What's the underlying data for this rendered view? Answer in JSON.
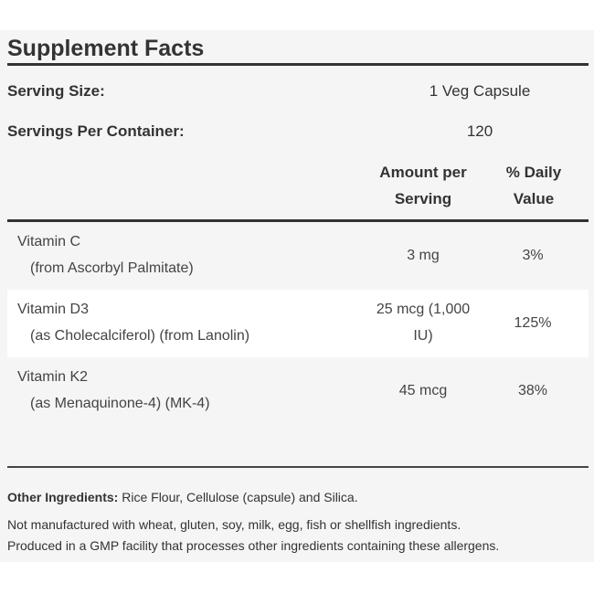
{
  "title": "Supplement Facts",
  "serving_size": {
    "label": "Serving Size:",
    "value": "1 Veg Capsule"
  },
  "servings_per_container": {
    "label": "Servings Per Container:",
    "value": "120"
  },
  "columns": {
    "amount_line1": "Amount per",
    "amount_line2": "Serving",
    "dv_line1": "% Daily",
    "dv_line2": "Value"
  },
  "rows": [
    {
      "name": "Vitamin C",
      "source": "(from Ascorbyl Palmitate)",
      "amount_line1": "3 mg",
      "amount_line2": "",
      "dv": "3%"
    },
    {
      "name": "Vitamin D3",
      "source": "(as Cholecalciferol) (from Lanolin)",
      "amount_line1": "25 mcg (1,000",
      "amount_line2": "IU)",
      "dv": "125%"
    },
    {
      "name": "Vitamin K2",
      "source": "(as Menaquinone-4) (MK-4)",
      "amount_line1": "45 mcg",
      "amount_line2": "",
      "dv": "38%"
    }
  ],
  "other_ingredients": {
    "label": "Other Ingredients:",
    "value": "Rice Flour, Cellulose (capsule) and Silica."
  },
  "allergen_line1": "Not manufactured with wheat, gluten, soy, milk, egg, fish or shellfish ingredients.",
  "allergen_line2": "Produced in a GMP facility that processes other ingredients containing these allergens."
}
